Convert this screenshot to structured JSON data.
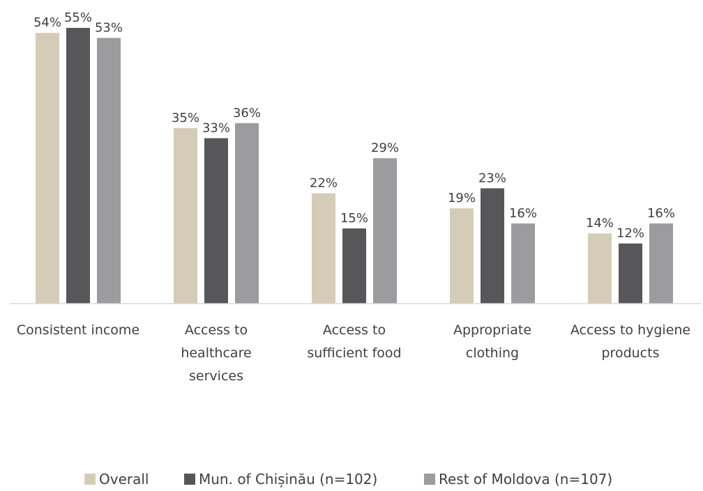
{
  "chart_data": {
    "type": "bar",
    "categories": [
      [
        "Consistent income"
      ],
      [
        "Access to",
        "healthcare",
        "services"
      ],
      [
        "Access to",
        "sufficient food"
      ],
      [
        "Appropriate",
        "clothing"
      ],
      [
        "Access to hygiene",
        "products"
      ]
    ],
    "series": [
      {
        "name": "Overall",
        "color": "#d5ccb8",
        "values": [
          54,
          35,
          22,
          19,
          14
        ]
      },
      {
        "name": "Mun. of Chișinău (n=102)",
        "color": "#575759",
        "values": [
          55,
          33,
          15,
          23,
          12
        ]
      },
      {
        "name": "Rest of Moldova (n=107)",
        "color": "#9c9c9e",
        "values": [
          53,
          36,
          29,
          16,
          16
        ]
      }
    ],
    "value_suffix": "%",
    "ylim": [
      0,
      55
    ],
    "grid": false,
    "legend_position": "bottom",
    "axis_color": "#d9d9d9",
    "text_color": "#404040"
  }
}
